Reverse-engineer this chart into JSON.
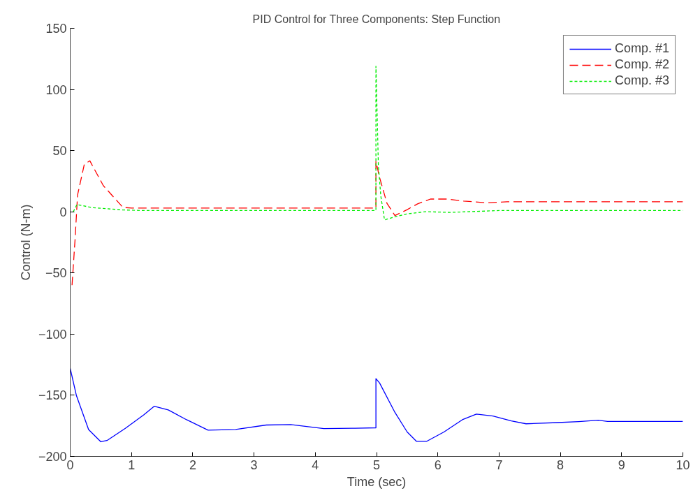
{
  "chart_data": {
    "type": "line",
    "title": "PID Control for Three Components: Step Function",
    "xlabel": "Time (sec)",
    "ylabel": "Control (N-m)",
    "xlim": [
      0,
      10
    ],
    "ylim": [
      -200,
      150
    ],
    "xticks": [
      0,
      1,
      2,
      3,
      4,
      5,
      6,
      7,
      8,
      9,
      10
    ],
    "yticks": [
      -200,
      -150,
      -100,
      -50,
      0,
      50,
      100,
      150
    ],
    "grid": false,
    "legend": "top right",
    "marker": "none",
    "series": [
      {
        "name": "Comp. #1",
        "color": "#0000ff",
        "line_style": "solid",
        "x": [
          0,
          0.1,
          0.3,
          0.5,
          0.6,
          0.9,
          1.2,
          1.37,
          1.6,
          1.9,
          2.25,
          2.7,
          3.2,
          3.6,
          4.14,
          4.6,
          4.99,
          4.99,
          5.05,
          5.3,
          5.5,
          5.65,
          5.82,
          6.1,
          6.4,
          6.63,
          6.9,
          7.2,
          7.44,
          7.96,
          8.3,
          8.62,
          8.77,
          9.5,
          10
        ],
        "values": [
          -128,
          -150,
          -178,
          -188,
          -187,
          -177,
          -166,
          -159,
          -162,
          -170,
          -178.5,
          -178,
          -174.3,
          -174,
          -177.2,
          -177,
          -176.6,
          -136.4,
          -140,
          -164,
          -180,
          -187.6,
          -187.6,
          -180,
          -170,
          -165.4,
          -167,
          -171,
          -173.3,
          -172.3,
          -171.5,
          -170.4,
          -171.4,
          -171.4,
          -171.4
        ]
      },
      {
        "name": "Comp. #2",
        "color": "#ff0000",
        "line_style": "dashed",
        "x": [
          0.03,
          0.08,
          0.12,
          0.23,
          0.32,
          0.54,
          0.86,
          1.0,
          4.99,
          4.99,
          5.05,
          5.17,
          5.3,
          5.49,
          5.67,
          5.88,
          6.15,
          6.42,
          6.81,
          7.13,
          10
        ],
        "values": [
          -60,
          -22,
          13.7,
          38.8,
          41.7,
          21.4,
          3.6,
          3,
          3,
          41.3,
          28,
          6.9,
          -3.1,
          1.5,
          6.5,
          10.4,
          10.4,
          8.8,
          7.3,
          8.2,
          8.2
        ]
      },
      {
        "name": "Comp. #3",
        "color": "#00ee00",
        "line_style": "dotted",
        "x": [
          0.05,
          0.11,
          0.36,
          0.86,
          1.2,
          4.99,
          4.99,
          5.03,
          5.07,
          5.13,
          5.26,
          5.49,
          5.8,
          6.2,
          7.0,
          10
        ],
        "values": [
          0,
          5.9,
          3.4,
          1.5,
          1,
          1,
          118.9,
          37.8,
          12.7,
          -6.6,
          -4.7,
          -1.8,
          0.1,
          -0.5,
          1,
          1
        ]
      }
    ]
  }
}
